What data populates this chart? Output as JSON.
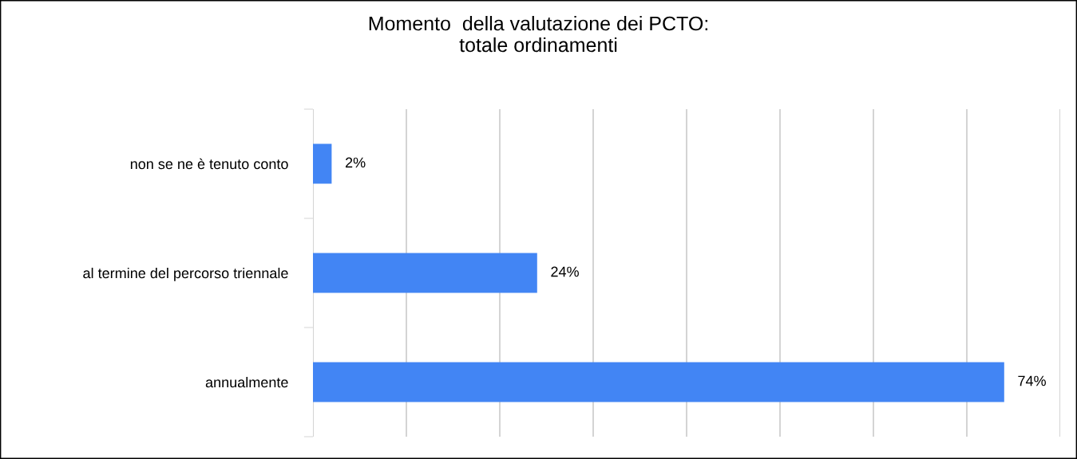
{
  "chart_data": {
    "type": "bar",
    "orientation": "horizontal",
    "title": "Momento  della valutazione dei PCTO:\ntotale ordinamenti",
    "categories": [
      "non se ne è tenuto conto",
      "al termine del percorso triennale",
      "annualmente"
    ],
    "values": [
      2,
      24,
      74
    ],
    "color": "#4285f4",
    "value_labels": [
      "2%",
      "24%",
      "74%"
    ],
    "xlim": [
      0,
      80
    ],
    "xticks": [
      {
        "value": 0,
        "label": null
      },
      {
        "value": 10,
        "label": null
      },
      {
        "value": 20,
        "label": null
      },
      {
        "value": 30,
        "label": null
      },
      {
        "value": 40,
        "label": null
      },
      {
        "value": 50,
        "label": null
      },
      {
        "value": 60,
        "label": null
      },
      {
        "value": 70,
        "label": null
      },
      {
        "value": 80,
        "label": null
      }
    ],
    "grid": "x",
    "tick_labels": "y",
    "legend": false
  }
}
